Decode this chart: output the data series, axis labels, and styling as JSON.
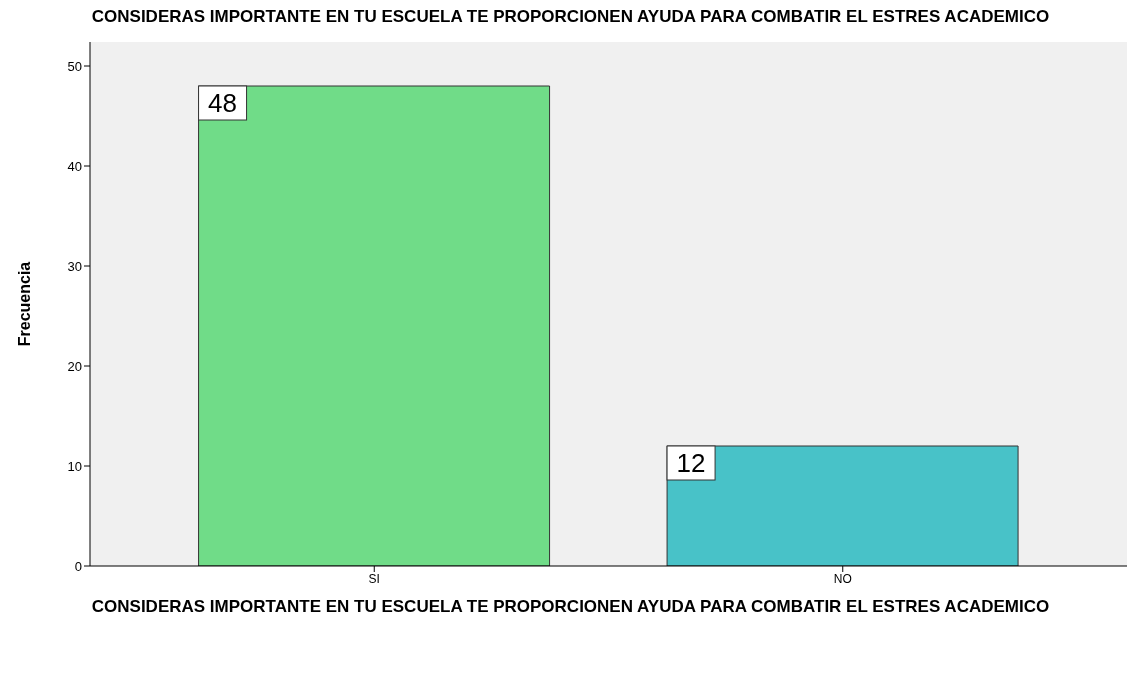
{
  "chart_data": {
    "type": "bar",
    "title": "CONSIDERAS IMPORTANTE EN TU ESCUELA TE PROPORCIONEN AYUDA PARA COMBATIR EL ESTRES ACADEMICO",
    "xlabel": "CONSIDERAS IMPORTANTE EN TU ESCUELA TE PROPORCIONEN AYUDA PARA COMBATIR EL ESTRES ACADEMICO",
    "ylabel": "Frecuencia",
    "categories": [
      "SI",
      "NO"
    ],
    "values": [
      48,
      12
    ],
    "colors": [
      "#70dc88",
      "#48c2c8"
    ],
    "ylim": [
      0,
      52.4
    ],
    "yticks": [
      0,
      10,
      20,
      30,
      40,
      50
    ],
    "data_labels": true
  }
}
